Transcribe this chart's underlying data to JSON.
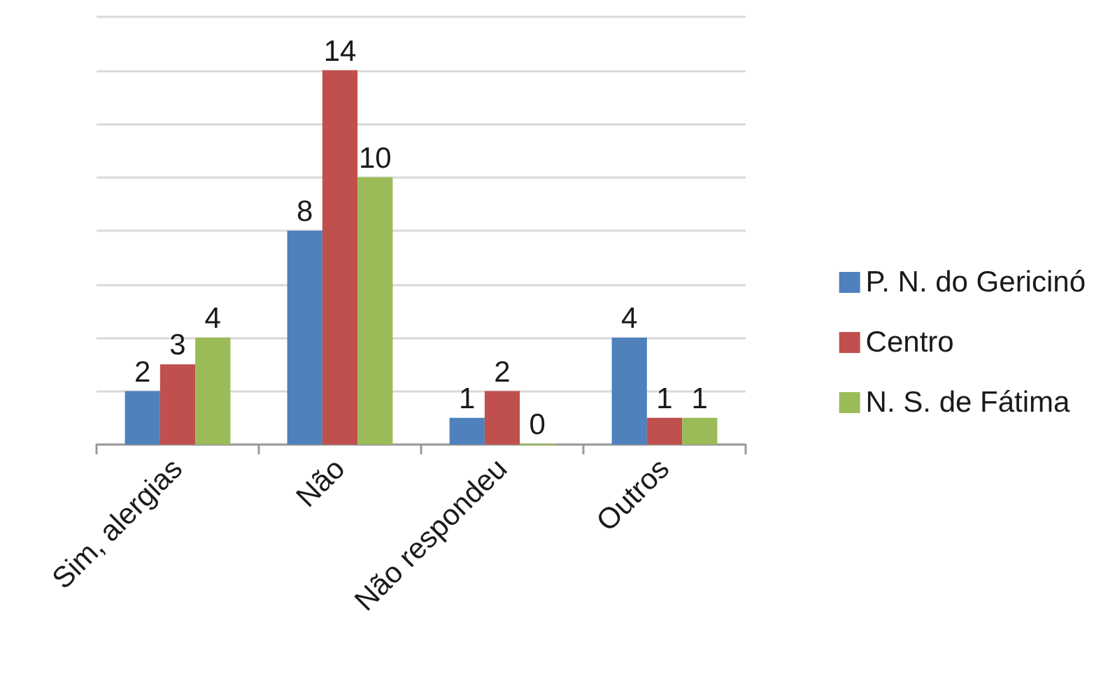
{
  "chart_data": {
    "type": "bar",
    "categories": [
      "Sim, alergias",
      "Não",
      "Não respondeu",
      "Outros"
    ],
    "series": [
      {
        "name": "P. N. do Gericinó",
        "color": "#4f81bd",
        "values": [
          2,
          8,
          1,
          4
        ]
      },
      {
        "name": "Centro",
        "color": "#c0504d",
        "values": [
          3,
          14,
          2,
          1
        ]
      },
      {
        "name": "N. S. de Fátima",
        "color": "#9bbb59",
        "values": [
          4,
          10,
          0,
          1
        ]
      }
    ],
    "ylim": [
      0,
      16
    ],
    "yticks": [
      0,
      2,
      4,
      6,
      8,
      10,
      12,
      14,
      16
    ],
    "grid": "y",
    "legend": "right",
    "data_labels": true,
    "tick_labels": "x"
  }
}
